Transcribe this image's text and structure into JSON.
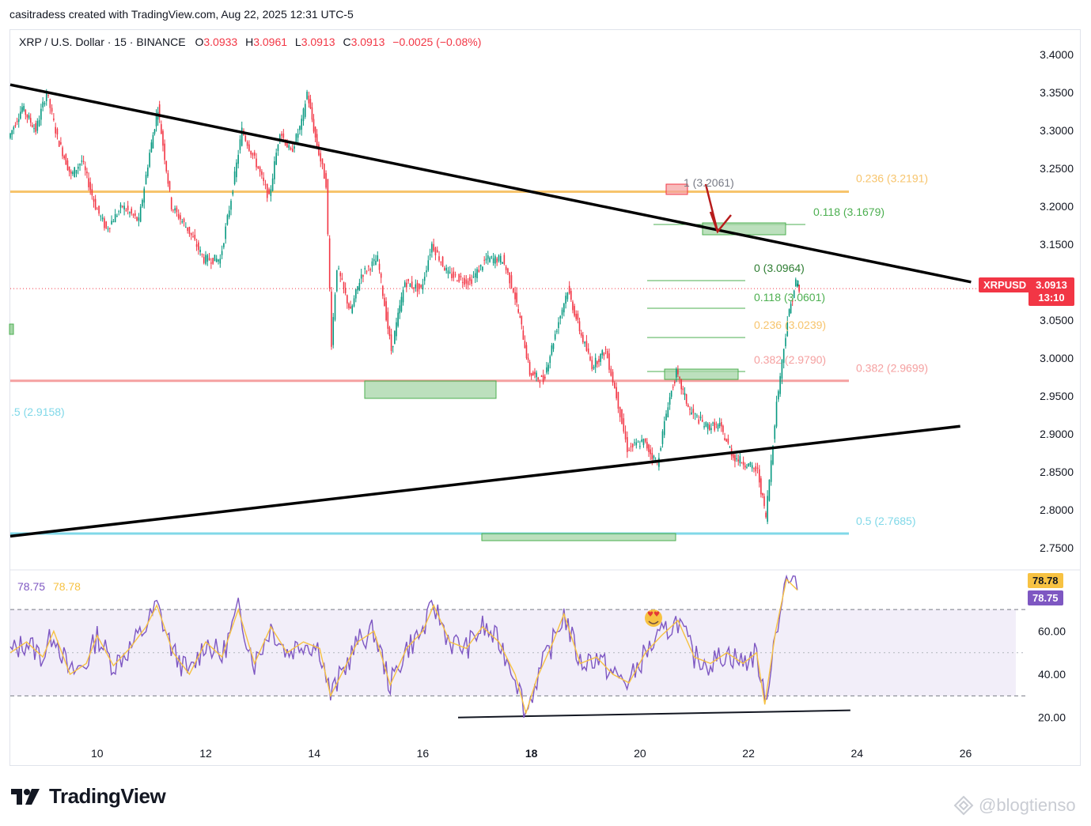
{
  "header": {
    "created_line": "casitradess created with TradingView.com, Aug 22, 2025 12:31 UTC-5"
  },
  "symbol": {
    "name": "XRP / U.S. Dollar · 15 · BINANCE",
    "o_label": "O",
    "o": "3.0933",
    "h_label": "H",
    "h": "3.0961",
    "l_label": "L",
    "l": "3.0913",
    "c_label": "C",
    "c": "3.0913",
    "change": "−0.0025 (−0.08%)"
  },
  "price_tag": {
    "ticker": "XRPUSD",
    "price": "3.0913",
    "countdown": "13:10"
  },
  "rsi_header": {
    "rsi": "78.75",
    "ma": "78.78"
  },
  "rsi_tags": {
    "ma": "78.78",
    "rsi": "78.75"
  },
  "brand": {
    "name": "TradingView"
  },
  "watermark": {
    "text": "@blogtienso"
  },
  "colors": {
    "up": "#089981",
    "down": "#f23645",
    "orange": "#f7c46c",
    "pink": "#f5a0a0",
    "cyan": "#80d8e8",
    "green_box": "#a5d6a7",
    "rsi": "#7e57c2",
    "rsi_ma": "#f7c242"
  },
  "chart_data": {
    "type": "line",
    "title": "XRP / U.S. Dollar · 15 · BINANCE",
    "y_ticks": [
      "3.4000",
      "3.3500",
      "3.3000",
      "3.2500",
      "3.2000",
      "3.1500",
      "3.1000",
      "3.0500",
      "3.0000",
      "2.9500",
      "2.9000",
      "2.8500",
      "2.8000",
      "2.7500"
    ],
    "ylim": [
      2.73,
      3.43
    ],
    "x_ticks": [
      "10",
      "12",
      "14",
      "16",
      "18",
      "20",
      "22",
      "24",
      "26"
    ],
    "x_tick_days": [
      10,
      12,
      14,
      16,
      18,
      20,
      22,
      24,
      26
    ],
    "xlim_days": [
      8.4,
      27.1
    ],
    "price_path": [
      {
        "day": 8.4,
        "price": 3.29
      },
      {
        "day": 8.65,
        "price": 3.33
      },
      {
        "day": 8.9,
        "price": 3.3
      },
      {
        "day": 9.1,
        "price": 3.35
      },
      {
        "day": 9.3,
        "price": 3.29
      },
      {
        "day": 9.55,
        "price": 3.24
      },
      {
        "day": 9.75,
        "price": 3.26
      },
      {
        "day": 10.0,
        "price": 3.2
      },
      {
        "day": 10.2,
        "price": 3.17
      },
      {
        "day": 10.5,
        "price": 3.2
      },
      {
        "day": 10.8,
        "price": 3.18
      },
      {
        "day": 11.0,
        "price": 3.27
      },
      {
        "day": 11.15,
        "price": 3.33
      },
      {
        "day": 11.4,
        "price": 3.2
      },
      {
        "day": 11.7,
        "price": 3.17
      },
      {
        "day": 12.0,
        "price": 3.13
      },
      {
        "day": 12.3,
        "price": 3.13
      },
      {
        "day": 12.5,
        "price": 3.21
      },
      {
        "day": 12.7,
        "price": 3.3
      },
      {
        "day": 13.0,
        "price": 3.25
      },
      {
        "day": 13.2,
        "price": 3.21
      },
      {
        "day": 13.4,
        "price": 3.3
      },
      {
        "day": 13.6,
        "price": 3.27
      },
      {
        "day": 13.8,
        "price": 3.31
      },
      {
        "day": 13.9,
        "price": 3.35
      },
      {
        "day": 14.05,
        "price": 3.29
      },
      {
        "day": 14.25,
        "price": 3.23
      },
      {
        "day": 14.35,
        "price": 3.02
      },
      {
        "day": 14.45,
        "price": 3.12
      },
      {
        "day": 14.7,
        "price": 3.06
      },
      {
        "day": 14.9,
        "price": 3.11
      },
      {
        "day": 15.2,
        "price": 3.13
      },
      {
        "day": 15.45,
        "price": 3.01
      },
      {
        "day": 15.7,
        "price": 3.1
      },
      {
        "day": 16.0,
        "price": 3.09
      },
      {
        "day": 16.2,
        "price": 3.15
      },
      {
        "day": 16.5,
        "price": 3.11
      },
      {
        "day": 16.9,
        "price": 3.1
      },
      {
        "day": 17.2,
        "price": 3.13
      },
      {
        "day": 17.5,
        "price": 3.13
      },
      {
        "day": 17.7,
        "price": 3.09
      },
      {
        "day": 17.85,
        "price": 3.04
      },
      {
        "day": 18.0,
        "price": 2.98
      },
      {
        "day": 18.25,
        "price": 2.97
      },
      {
        "day": 18.5,
        "price": 3.04
      },
      {
        "day": 18.7,
        "price": 3.09
      },
      {
        "day": 18.95,
        "price": 3.03
      },
      {
        "day": 19.15,
        "price": 2.99
      },
      {
        "day": 19.4,
        "price": 3.01
      },
      {
        "day": 19.6,
        "price": 2.95
      },
      {
        "day": 19.8,
        "price": 2.88
      },
      {
        "day": 20.1,
        "price": 2.89
      },
      {
        "day": 20.35,
        "price": 2.86
      },
      {
        "day": 20.55,
        "price": 2.94
      },
      {
        "day": 20.7,
        "price": 2.98
      },
      {
        "day": 20.95,
        "price": 2.93
      },
      {
        "day": 21.25,
        "price": 2.91
      },
      {
        "day": 21.5,
        "price": 2.91
      },
      {
        "day": 21.75,
        "price": 2.87
      },
      {
        "day": 22.0,
        "price": 2.86
      },
      {
        "day": 22.2,
        "price": 2.85
      },
      {
        "day": 22.35,
        "price": 2.79
      },
      {
        "day": 22.55,
        "price": 2.94
      },
      {
        "day": 22.75,
        "price": 3.05
      },
      {
        "day": 22.9,
        "price": 3.1
      },
      {
        "day": 22.95,
        "price": 3.09
      }
    ],
    "trendlines": [
      {
        "name": "upper",
        "from": [
          8.4,
          3.36
        ],
        "to": [
          26.1,
          3.1
        ]
      },
      {
        "name": "lower",
        "from": [
          8.4,
          2.765
        ],
        "to": [
          25.9,
          2.91
        ]
      },
      {
        "name": "rsi-support",
        "from": [
          16.65,
          20.0
        ],
        "to": [
          26.5,
          31.0
        ]
      }
    ],
    "horizontal_levels": [
      {
        "price": 3.2191,
        "label": "0.236 (3.2191)",
        "color": "#f7c46c"
      },
      {
        "price": 2.9699,
        "label": "0.382 (2.9699)",
        "color": "#f5a0a0"
      },
      {
        "price": 2.7685,
        "label": "0.5 (2.7685)",
        "color": "#80d8e8"
      }
    ],
    "fib_labels": [
      {
        "label": "1 (3.2061)",
        "price": 3.2061,
        "color": "#787b86"
      },
      {
        "label": "0.118 (3.1679)",
        "price": 3.1679,
        "color": "#4caf50"
      },
      {
        "label": "0 (3.0964)",
        "price": 3.0964,
        "color": "#2e7d32"
      },
      {
        "label": "0.118 (3.0601)",
        "price": 3.0601,
        "color": "#4caf50"
      },
      {
        "label": "0.236 (3.0239)",
        "price": 3.0239,
        "color": "#f7c46c"
      },
      {
        "label": "0.382 (2.9790)",
        "price": 2.979,
        "color": "#f5a0a0"
      },
      {
        "label": ".5 (2.9158)",
        "price": 2.9158,
        "color": "#80d8e8"
      }
    ],
    "rsi": {
      "y_ticks": [
        "60.00",
        "40.00",
        "20.00"
      ],
      "ylim": [
        10,
        88
      ],
      "band": [
        30,
        70
      ],
      "path": [
        {
          "day": 8.4,
          "v": 50
        },
        {
          "day": 8.7,
          "v": 55
        },
        {
          "day": 9.0,
          "v": 48
        },
        {
          "day": 9.2,
          "v": 60
        },
        {
          "day": 9.5,
          "v": 40
        },
        {
          "day": 9.8,
          "v": 45
        },
        {
          "day": 10.0,
          "v": 58
        },
        {
          "day": 10.3,
          "v": 44
        },
        {
          "day": 10.6,
          "v": 52
        },
        {
          "day": 10.9,
          "v": 62
        },
        {
          "day": 11.1,
          "v": 72
        },
        {
          "day": 11.4,
          "v": 50
        },
        {
          "day": 11.7,
          "v": 40
        },
        {
          "day": 12.0,
          "v": 55
        },
        {
          "day": 12.3,
          "v": 48
        },
        {
          "day": 12.6,
          "v": 70
        },
        {
          "day": 12.9,
          "v": 45
        },
        {
          "day": 13.2,
          "v": 62
        },
        {
          "day": 13.5,
          "v": 50
        },
        {
          "day": 13.8,
          "v": 55
        },
        {
          "day": 14.1,
          "v": 52
        },
        {
          "day": 14.3,
          "v": 30
        },
        {
          "day": 14.5,
          "v": 40
        },
        {
          "day": 14.8,
          "v": 55
        },
        {
          "day": 15.1,
          "v": 60
        },
        {
          "day": 15.4,
          "v": 35
        },
        {
          "day": 15.7,
          "v": 52
        },
        {
          "day": 16.0,
          "v": 60
        },
        {
          "day": 16.2,
          "v": 72
        },
        {
          "day": 16.5,
          "v": 55
        },
        {
          "day": 16.8,
          "v": 52
        },
        {
          "day": 17.1,
          "v": 62
        },
        {
          "day": 17.4,
          "v": 55
        },
        {
          "day": 17.7,
          "v": 40
        },
        {
          "day": 17.9,
          "v": 22
        },
        {
          "day": 18.1,
          "v": 38
        },
        {
          "day": 18.4,
          "v": 55
        },
        {
          "day": 18.6,
          "v": 68
        },
        {
          "day": 18.9,
          "v": 45
        },
        {
          "day": 19.2,
          "v": 48
        },
        {
          "day": 19.5,
          "v": 40
        },
        {
          "day": 19.8,
          "v": 36
        },
        {
          "day": 20.1,
          "v": 50
        },
        {
          "day": 20.4,
          "v": 58
        },
        {
          "day": 20.7,
          "v": 65
        },
        {
          "day": 21.0,
          "v": 48
        },
        {
          "day": 21.3,
          "v": 45
        },
        {
          "day": 21.6,
          "v": 50
        },
        {
          "day": 21.9,
          "v": 45
        },
        {
          "day": 22.15,
          "v": 50
        },
        {
          "day": 22.3,
          "v": 26
        },
        {
          "day": 22.5,
          "v": 60
        },
        {
          "day": 22.7,
          "v": 84
        },
        {
          "day": 22.9,
          "v": 79
        }
      ]
    }
  }
}
